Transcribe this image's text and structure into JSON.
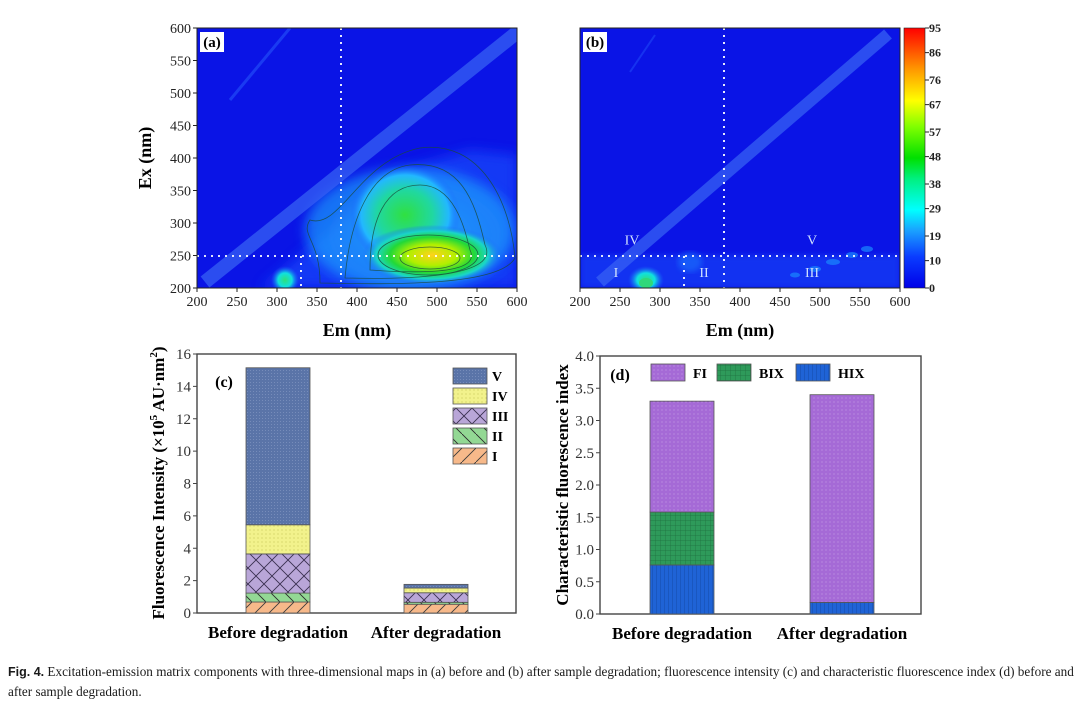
{
  "caption": {
    "label": "Fig. 4.",
    "text": "Excitation-emission matrix components with three-dimensional maps in (a) before and (b) after sample degradation; fluorescence intensity (c) and characteristic fluorescence index (d) before and after sample degradation."
  },
  "chart_data": [
    {
      "type": "heatmap",
      "panel": "(a)",
      "title": "",
      "xlabel": "Em (nm)",
      "ylabel": "Ex (nm)",
      "xlim": [
        200,
        600
      ],
      "ylim": [
        200,
        600
      ],
      "xticks": [
        200,
        250,
        300,
        350,
        400,
        450,
        500,
        550,
        600
      ],
      "yticks": [
        200,
        250,
        300,
        350,
        400,
        450,
        500,
        550,
        600
      ],
      "divider_lines": {
        "em": [
          330,
          380
        ],
        "ex": [
          250
        ]
      },
      "peaks": [
        {
          "em": 430,
          "ex": 245,
          "intensity": 70,
          "note": "main peak"
        },
        {
          "em": 420,
          "ex": 310,
          "intensity": 50
        },
        {
          "em": 285,
          "ex": 210,
          "intensity": 28
        }
      ],
      "scatter_band": "first-order Rayleigh along Em = Ex"
    },
    {
      "type": "heatmap",
      "panel": "(b)",
      "title": "",
      "xlabel": "Em (nm)",
      "ylabel": "",
      "xlim": [
        200,
        600
      ],
      "ylim": [
        200,
        600
      ],
      "xticks": [
        200,
        250,
        300,
        350,
        400,
        450,
        500,
        550,
        600
      ],
      "divider_lines": {
        "em": [
          330,
          380
        ],
        "ex": [
          250
        ]
      },
      "region_labels": [
        {
          "label": "I",
          "em": 245,
          "ex": 225
        },
        {
          "label": "II",
          "em": 355,
          "ex": 225
        },
        {
          "label": "III",
          "em": 490,
          "ex": 225
        },
        {
          "label": "IV",
          "em": 265,
          "ex": 275
        },
        {
          "label": "V",
          "em": 490,
          "ex": 275
        }
      ],
      "peaks": [
        {
          "em": 283,
          "ex": 212,
          "intensity": 30
        }
      ],
      "colorbar": {
        "min": 0,
        "max": 95,
        "ticks": [
          0,
          10,
          19,
          29,
          38,
          48,
          57,
          67,
          76,
          86,
          95
        ]
      }
    },
    {
      "type": "bar",
      "stacked": true,
      "panel": "(c)",
      "title": "",
      "xlabel": "",
      "ylabel": "Fluorescence Intensity (×10⁵ AU·nm²)",
      "ylabel_parts": {
        "main": "Fluorescence Intensity (×10",
        "sup1": "5",
        "mid": " AU·nm",
        "sup2": "2",
        "end": ")"
      },
      "ylim": [
        0,
        16
      ],
      "yticks": [
        0,
        2,
        4,
        6,
        8,
        10,
        12,
        14,
        16
      ],
      "categories": [
        "Before degradation",
        "After degradation"
      ],
      "legend_position": "top-right",
      "legend_order": [
        "V",
        "IV",
        "III",
        "II",
        "I"
      ],
      "series": [
        {
          "name": "I",
          "color": "#f7b98a",
          "pattern": "diag-right",
          "values": [
            0.68,
            0.54
          ]
        },
        {
          "name": "II",
          "color": "#93d894",
          "pattern": "diag-left",
          "values": [
            0.55,
            0.12
          ]
        },
        {
          "name": "III",
          "color": "#b9a6d8",
          "pattern": "crosshatch",
          "values": [
            2.42,
            0.59
          ]
        },
        {
          "name": "IV",
          "color": "#f2f28c",
          "pattern": "dots",
          "values": [
            1.8,
            0.29
          ]
        },
        {
          "name": "V",
          "color": "#5a74a8",
          "pattern": "dense-dots",
          "values": [
            9.7,
            0.23
          ]
        }
      ]
    },
    {
      "type": "bar",
      "stacked": true,
      "panel": "(d)",
      "title": "",
      "xlabel": "",
      "ylabel": "Characteristic fluorescence index",
      "ylim": [
        0,
        4.0
      ],
      "yticks": [
        "0.0",
        "0.5",
        "1.0",
        "1.5",
        "2.0",
        "2.5",
        "3.0",
        "3.5",
        "4.0"
      ],
      "categories": [
        "Before degradation",
        "After degradation"
      ],
      "legend_position": "top",
      "legend_order": [
        "FI",
        "BIX",
        "HIX"
      ],
      "series": [
        {
          "name": "HIX",
          "color": "#1f63d6",
          "pattern": "vlines",
          "values": [
            0.76,
            0.18
          ]
        },
        {
          "name": "BIX",
          "color": "#2e9a5a",
          "pattern": "grid",
          "values": [
            0.82,
            0.0
          ]
        },
        {
          "name": "FI",
          "color": "#a56ad6",
          "pattern": "dots",
          "values": [
            1.72,
            3.22
          ]
        }
      ]
    }
  ]
}
